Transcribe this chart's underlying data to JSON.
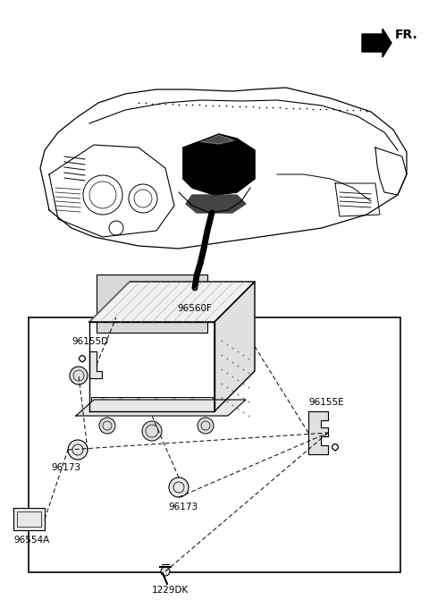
{
  "bg_color": "#ffffff",
  "line_color": "#000000",
  "gray_light": "#cccccc",
  "gray_mid": "#aaaaaa",
  "gray_dark": "#888888",
  "labels": {
    "FR": "FR.",
    "l96560F": "96560F",
    "l96155D": "96155D",
    "l96155E": "96155E",
    "l96173a": "96173",
    "l96173b": "96173",
    "l96554A": "96554A",
    "l1229DK": "1229DK"
  },
  "font_size": 7.5
}
